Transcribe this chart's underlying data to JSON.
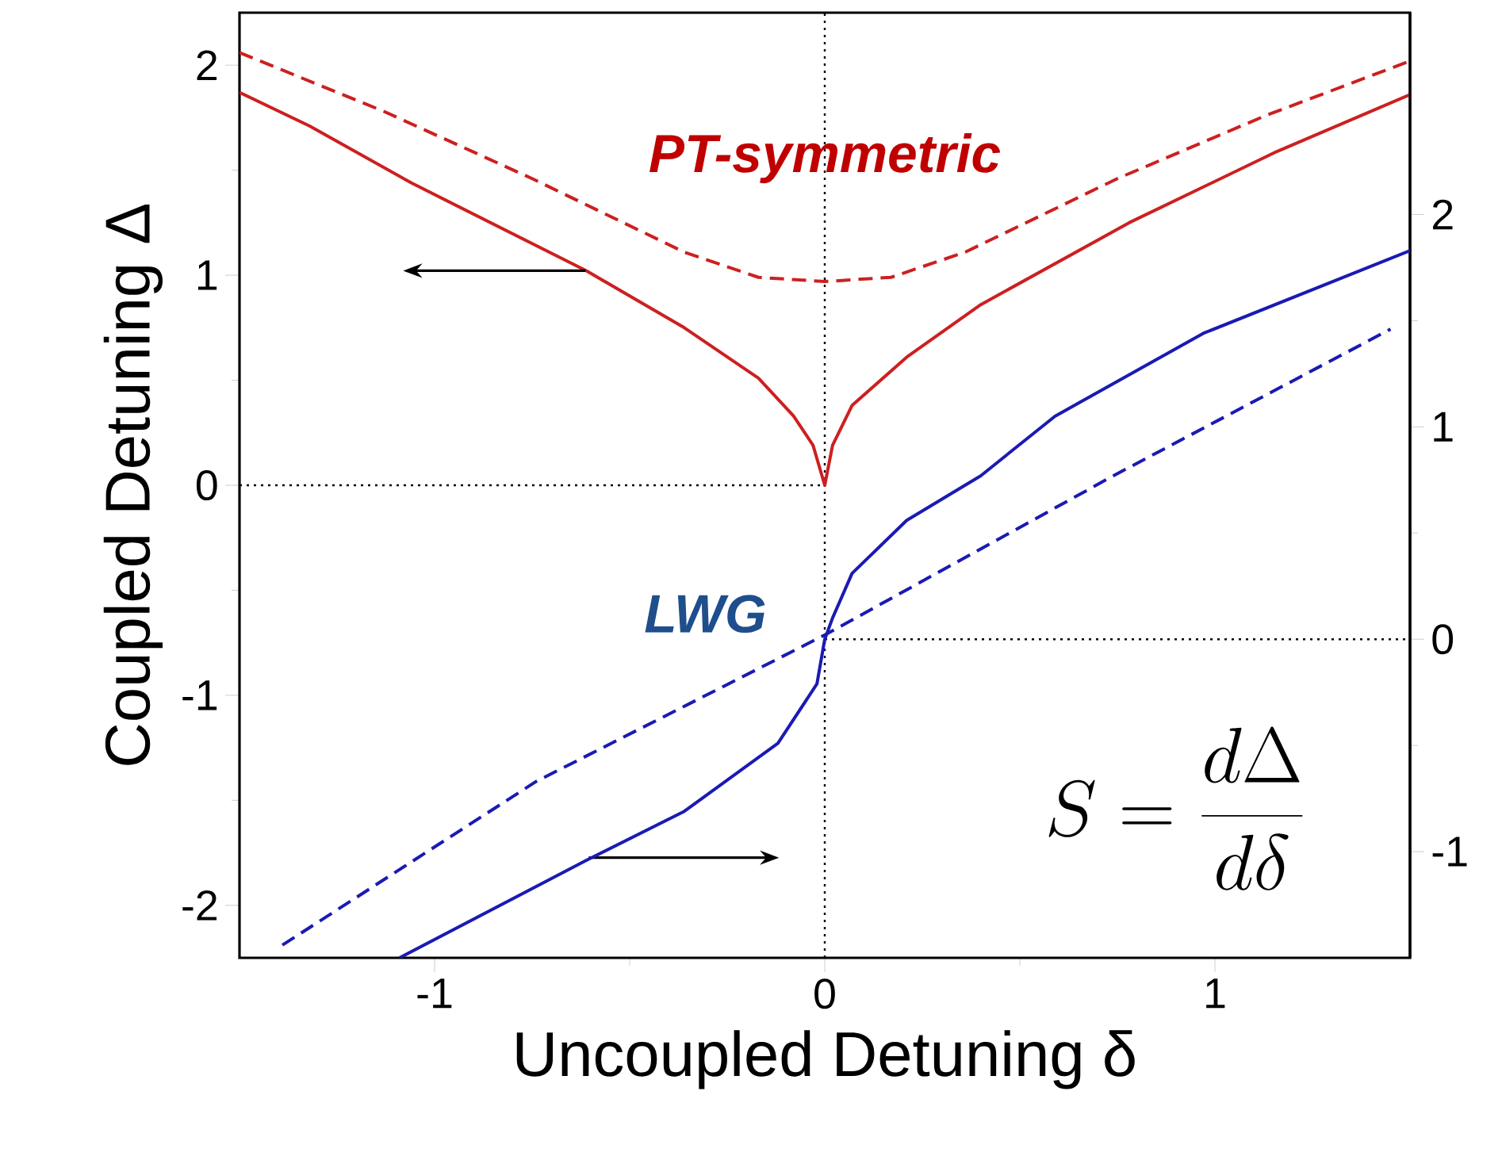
{
  "chart_data": {
    "type": "line",
    "xlabel": "Uncoupled Detuning δ",
    "ylabel": "Coupled Detuning Δ",
    "xlim": [
      -1.5,
      1.5
    ],
    "ylim": [
      -2.25,
      2.25
    ],
    "y2lim": [
      -1.5,
      2.95
    ],
    "xticks": [
      -1,
      0,
      1
    ],
    "yticks": [
      -2,
      -1,
      0,
      1,
      2
    ],
    "y2ticks": [
      -1,
      0,
      1,
      2
    ],
    "annotations": [
      "PT-symmetric",
      "LWG",
      "S = \\frac{d\\Delta}{d\\delta}"
    ],
    "ref_lines": [
      {
        "axis": "x",
        "value": 0,
        "color": "#000000",
        "line_style": "dotted"
      },
      {
        "axis": "y",
        "value": 0,
        "color": "#000000",
        "line_style": "dotted"
      },
      {
        "axis": "y2",
        "value": 0,
        "color": "#000000",
        "line_style": "dotted"
      }
    ],
    "series": [
      {
        "color": "#cc2020",
        "line_style": "solid",
        "x": [
          -1.5,
          -1.32,
          -1.06,
          -0.61,
          -0.36,
          -0.17,
          -0.08,
          -0.03,
          0,
          0.02,
          0.07,
          0.21,
          0.4,
          0.78,
          1.16,
          1.5
        ],
        "values": [
          1.87,
          1.71,
          1.44,
          1.02,
          0.75,
          0.51,
          0.33,
          0.19,
          0,
          0.19,
          0.38,
          0.61,
          0.86,
          1.25,
          1.59,
          1.86
        ]
      },
      {
        "color": "#cc2020",
        "line_style": "dashed",
        "x": [
          -1.5,
          -1.13,
          -0.75,
          -0.36,
          -0.17,
          0,
          0.17,
          0.36,
          0.75,
          1.13,
          1.5
        ],
        "values": [
          2.06,
          1.78,
          1.46,
          1.11,
          0.99,
          0.97,
          0.99,
          1.11,
          1.46,
          1.76,
          2.02
        ]
      },
      {
        "color": "#1a1ab4",
        "line_style": "solid",
        "axis": "y2",
        "x": [
          -1.09,
          -0.61,
          -0.36,
          -0.12,
          -0.02,
          0,
          0.02,
          0.07,
          0.21,
          0.4,
          0.59,
          0.97,
          1.5
        ],
        "values": [
          -1.5,
          -1.04,
          -0.81,
          -0.49,
          -0.21,
          0,
          0.1,
          0.31,
          0.56,
          0.77,
          1.05,
          1.44,
          1.83
        ]
      },
      {
        "color": "#1a1ab4",
        "line_style": "dashed",
        "axis": "y2",
        "x": [
          -1.39,
          -0.74,
          0,
          0.74,
          1.45
        ],
        "values": [
          -1.44,
          -0.67,
          0.02,
          0.77,
          1.46
        ]
      }
    ]
  }
}
